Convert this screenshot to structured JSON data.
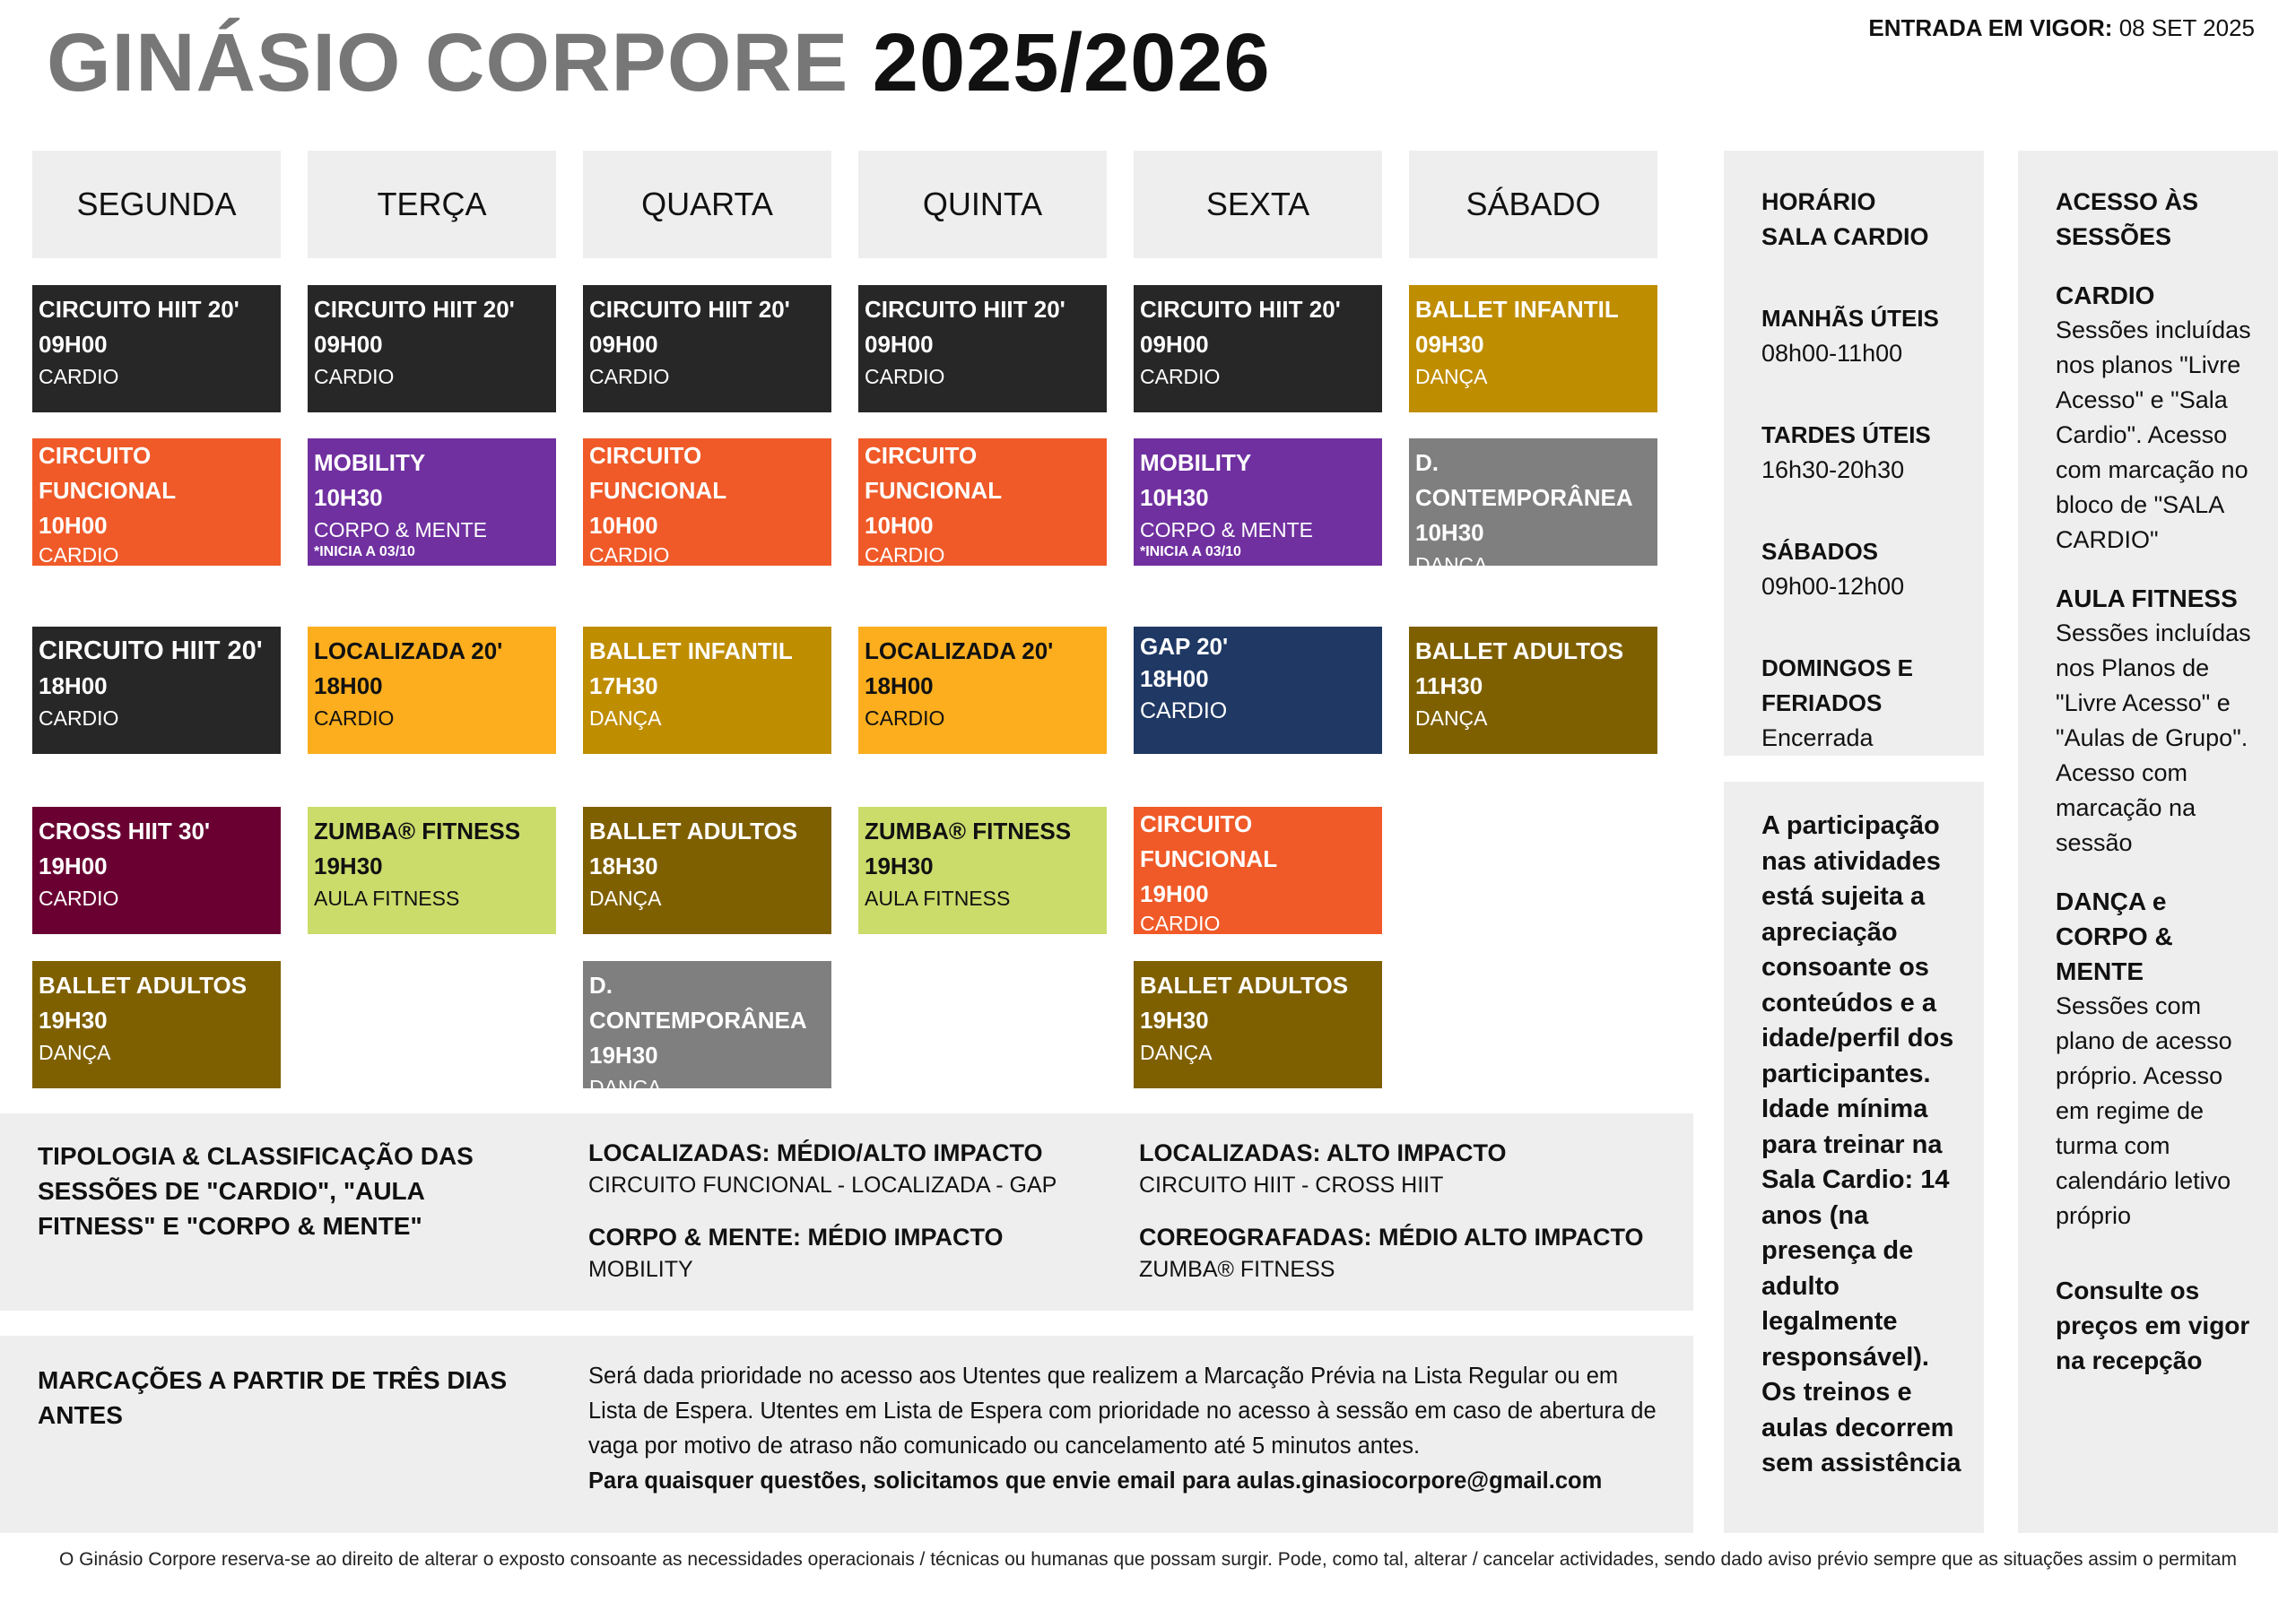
{
  "header": {
    "title_gym": "GINÁSIO CORPORE",
    "title_year": "2025/2026",
    "vigor_label": "ENTRADA EM VIGOR:",
    "vigor_date": "08 SET 2025"
  },
  "days": [
    "SEGUNDA",
    "TERÇA",
    "QUARTA",
    "QUINTA",
    "SEXTA",
    "SÁBADO"
  ],
  "classes": [
    {
      "id": "c1",
      "name": "CIRCUITO HIIT 20'",
      "time": "09H00",
      "cat": "CARDIO",
      "note": "",
      "color": "#272727"
    },
    {
      "id": "c2",
      "name": "CIRCUITO HIIT 20'",
      "time": "09H00",
      "cat": "CARDIO",
      "note": "",
      "color": "#272727"
    },
    {
      "id": "c3",
      "name": "CIRCUITO HIIT 20'",
      "time": "09H00",
      "cat": "CARDIO",
      "note": "",
      "color": "#272727"
    },
    {
      "id": "c4",
      "name": "CIRCUITO HIIT 20'",
      "time": "09H00",
      "cat": "CARDIO",
      "note": "",
      "color": "#272727"
    },
    {
      "id": "c5",
      "name": "CIRCUITO HIIT 20'",
      "time": "09H00",
      "cat": "CARDIO",
      "note": "",
      "color": "#272727"
    },
    {
      "id": "c6",
      "name": "BALLET INFANTIL",
      "time": "09H30",
      "cat": "DANÇA",
      "note": "",
      "color": "#bf8d00"
    },
    {
      "id": "c7",
      "name": "CIRCUITO FUNCIONAL",
      "time": "10H00",
      "cat": "CARDIO",
      "note": "",
      "color": "#f05a28"
    },
    {
      "id": "c8",
      "name": "MOBILITY",
      "time": "10H30",
      "cat": "CORPO & MENTE",
      "note": "*INICIA A 03/10",
      "color": "#7030a0"
    },
    {
      "id": "c9",
      "name": "CIRCUITO FUNCIONAL",
      "time": "10H00",
      "cat": "CARDIO",
      "note": "",
      "color": "#f05a28"
    },
    {
      "id": "c10",
      "name": "CIRCUITO FUNCIONAL",
      "time": "10H00",
      "cat": "CARDIO",
      "note": "",
      "color": "#f05a28"
    },
    {
      "id": "c11",
      "name": "MOBILITY",
      "time": "10H30",
      "cat": "CORPO & MENTE",
      "note": "*INICIA A 03/10",
      "color": "#7030a0"
    },
    {
      "id": "c12",
      "name": "D. CONTEMPORÂNEA",
      "time": "10H30",
      "cat": "DANÇA",
      "note": "",
      "color": "#7f7f7f"
    },
    {
      "id": "c13",
      "name": "CIRCUITO HIIT 20'",
      "time": "18H00",
      "cat": "CARDIO",
      "note": "",
      "color": "#272727"
    },
    {
      "id": "c14",
      "name": "LOCALIZADA 20'",
      "time": "18H00",
      "cat": "CARDIO",
      "note": "",
      "color": "#fcae1e"
    },
    {
      "id": "c15",
      "name": "BALLET INFANTIL",
      "time": "17H30",
      "cat": "DANÇA",
      "note": "",
      "color": "#bf8d00"
    },
    {
      "id": "c16",
      "name": "LOCALIZADA 20'",
      "time": "18H00",
      "cat": "CARDIO",
      "note": "",
      "color": "#fcae1e"
    },
    {
      "id": "c17",
      "name": "GAP 20'",
      "time": "18H00",
      "cat": "CARDIO",
      "note": "",
      "color": "#1f3864"
    },
    {
      "id": "c18",
      "name": "BALLET ADULTOS",
      "time": "11H30",
      "cat": "DANÇA",
      "note": "",
      "color": "#7f6000"
    },
    {
      "id": "c19",
      "name": "CROSS HIIT 30'",
      "time": "19H00",
      "cat": "CARDIO",
      "note": "",
      "color": "#6a0032"
    },
    {
      "id": "c20",
      "name": "ZUMBA® FITNESS",
      "time": "19H30",
      "cat": "AULA FITNESS",
      "note": "",
      "color": "#cbdc6b"
    },
    {
      "id": "c21",
      "name": "BALLET ADULTOS",
      "time": "18H30",
      "cat": "DANÇA",
      "note": "",
      "color": "#7f6000"
    },
    {
      "id": "c22",
      "name": "ZUMBA® FITNESS",
      "time": "19H30",
      "cat": "AULA FITNESS",
      "note": "",
      "color": "#cbdc6b"
    },
    {
      "id": "c23",
      "name": "CIRCUITO FUNCIONAL",
      "time": "19H00",
      "cat": "CARDIO",
      "note": "",
      "color": "#f05a28"
    },
    {
      "id": "c24",
      "name": "BALLET ADULTOS",
      "time": "19H30",
      "cat": "DANÇA",
      "note": "",
      "color": "#7f6000"
    },
    {
      "id": "c25",
      "name": "D. CONTEMPORÂNEA",
      "time": "19H30",
      "cat": "DANÇA",
      "note": "",
      "color": "#7f7f7f"
    },
    {
      "id": "c26",
      "name": "BALLET ADULTOS",
      "time": "19H30",
      "cat": "DANÇA",
      "note": "",
      "color": "#7f6000"
    }
  ],
  "horario": {
    "title_line1": "HORÁRIO",
    "title_line2": "SALA CARDIO",
    "manhas_label": "MANHÃS ÚTEIS",
    "manhas_value": "08h00-11h00",
    "tardes_label": "TARDES ÚTEIS",
    "tardes_value": "16h30-20h30",
    "sabados_label": "SÁBADOS",
    "sabados_value": "09h00-12h00",
    "domingos_label_1": "DOMINGOS E",
    "domingos_label_2": "FERIADOS",
    "domingos_value": "Encerrada"
  },
  "participacao": "A participação nas atividades está sujeita a apreciação consoante os conteúdos e a idade/perfil dos participantes. Idade mínima para treinar na Sala Cardio: 14 anos (na presença de adulto legalmente responsável). Os treinos e aulas decorrem sem assistência",
  "acesso": {
    "title_line1": "ACESSO ÀS",
    "title_line2": "SESSÕES",
    "cardio_label": "CARDIO",
    "cardio_text": "Sessões incluídas nos planos \"Livre Acesso\" e \"Sala Cardio\". Acesso com marcação no bloco de \"SALA CARDIO\"",
    "aula_label": "AULA FITNESS",
    "aula_text": "Sessões incluídas nos Planos de \"Livre Acesso\" e \"Aulas de Grupo\". Acesso com marcação na sessão",
    "danca_label": "DANÇA e CORPO & MENTE",
    "danca_text": "Sessões com plano de acesso próprio. Acesso em regime de turma com calendário letivo próprio",
    "consulte": "Consulte os preços em vigor na recepção"
  },
  "tipologia": {
    "title": "TIPOLOGIA & CLASSIFICAÇÃO DAS SESSÕES DE \"CARDIO\", \"AULA FITNESS\" E \"CORPO & MENTE\"",
    "loc_medio_label": "LOCALIZADAS: MÉDIO/ALTO IMPACTO",
    "loc_medio_value": "CIRCUITO FUNCIONAL - LOCALIZADA - GAP",
    "corpo_label": "CORPO & MENTE: MÉDIO IMPACTO",
    "corpo_value": "MOBILITY",
    "loc_alto_label": "LOCALIZADAS: ALTO IMPACTO",
    "loc_alto_value": "CIRCUITO HIIT - CROSS HIIT",
    "coreo_label": "COREOGRAFADAS: MÉDIO ALTO IMPACTO",
    "coreo_value": "ZUMBA® FITNESS"
  },
  "marcacoes": {
    "title": "MARCAÇÕES A PARTIR DE TRÊS DIAS ANTES",
    "text": "Será dada prioridade no acesso aos Utentes que realizem a Marcação Prévia na Lista Regular ou em Lista de Espera. Utentes em Lista de Espera com prioridade no acesso à sessão em caso de abertura de vaga por motivo de atraso não comunicado ou cancelamento até 5 minutos antes.",
    "bold_text": "Para quaisquer questões, solicitamos que envie email para aulas.ginasiocorpore@gmail.com"
  },
  "footer": "O Ginásio Corpore reserva-se ao direito de alterar o exposto consoante as necessidades operacionais / técnicas ou humanas que possam surgir. Pode, como tal, alterar / cancelar actividades, sendo dado aviso prévio sempre que as situações assim o permitam"
}
